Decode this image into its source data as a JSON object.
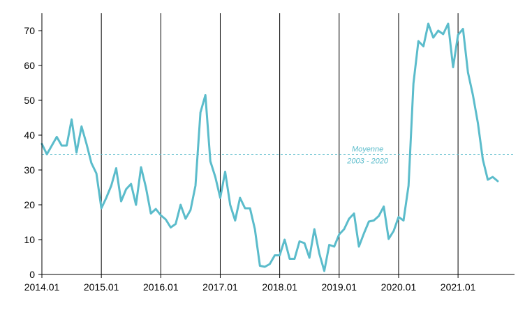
{
  "chart_data": {
    "type": "line",
    "title": "",
    "xlabel": "",
    "ylabel": "",
    "ylim": [
      0,
      75
    ],
    "yticks": [
      0,
      10,
      20,
      30,
      40,
      50,
      60,
      70
    ],
    "xlim": [
      2014.0,
      2021.95
    ],
    "x_ticks": [
      {
        "x": 2014.0,
        "label": "2014.01"
      },
      {
        "x": 2015.0,
        "label": "2015.01"
      },
      {
        "x": 2016.0,
        "label": "2016.01"
      },
      {
        "x": 2017.0,
        "label": "2017.01"
      },
      {
        "x": 2018.0,
        "label": "2018.01"
      },
      {
        "x": 2019.0,
        "label": "2019.01"
      },
      {
        "x": 2020.0,
        "label": "2020.01"
      },
      {
        "x": 2021.0,
        "label": "2021.01"
      }
    ],
    "vertical_lines": [
      2015.0,
      2016.0,
      2017.0,
      2018.0,
      2019.0,
      2020.0,
      2021.0
    ],
    "grid": false,
    "legend": "none",
    "series_color": "#5bbccb",
    "average": {
      "value": 34.5,
      "label_line1": "Moyenne",
      "label_line2": "2003 - 2020",
      "color": "#5bbccb"
    },
    "series": [
      {
        "x": [
          2014.0,
          2014.083,
          2014.167,
          2014.25,
          2014.333,
          2014.417,
          2014.5,
          2014.583,
          2014.667,
          2014.75,
          2014.833,
          2014.917,
          2015.0,
          2015.083,
          2015.167,
          2015.25,
          2015.333,
          2015.417,
          2015.5,
          2015.583,
          2015.667,
          2015.75,
          2015.833,
          2015.917,
          2016.0,
          2016.083,
          2016.167,
          2016.25,
          2016.333,
          2016.417,
          2016.5,
          2016.583,
          2016.667,
          2016.75,
          2016.833,
          2016.917,
          2017.0,
          2017.083,
          2017.167,
          2017.25,
          2017.333,
          2017.417,
          2017.5,
          2017.583,
          2017.667,
          2017.75,
          2017.833,
          2017.917,
          2018.0,
          2018.083,
          2018.167,
          2018.25,
          2018.333,
          2018.417,
          2018.5,
          2018.583,
          2018.667,
          2018.75,
          2018.833,
          2018.917,
          2019.0,
          2019.083,
          2019.167,
          2019.25,
          2019.333,
          2019.417,
          2019.5,
          2019.583,
          2019.667,
          2019.75,
          2019.833,
          2019.917,
          2020.0,
          2020.083,
          2020.167,
          2020.25,
          2020.333,
          2020.417,
          2020.5,
          2020.583,
          2020.667,
          2020.75,
          2020.833,
          2020.917,
          2021.0,
          2021.083,
          2021.167,
          2021.25,
          2021.333,
          2021.417,
          2021.5,
          2021.583,
          2021.667,
          2021.75
        ],
        "values": [
          37.5,
          34.5,
          37.0,
          39.5,
          37.0,
          37.0,
          44.5,
          35.0,
          42.5,
          37.5,
          32.0,
          29.0,
          19.0,
          22.0,
          25.5,
          30.5,
          21.0,
          24.5,
          26.0,
          20.0,
          30.8,
          25.0,
          17.5,
          18.8,
          17.0,
          15.8,
          13.5,
          14.5,
          20.0,
          16.0,
          18.5,
          25.5,
          46.5,
          51.5,
          32.5,
          28.0,
          22.0,
          29.5,
          20.0,
          15.5,
          22.0,
          19.0,
          19.0,
          13.0,
          2.5,
          2.2,
          3.0,
          5.5,
          5.5,
          10.0,
          4.5,
          4.5,
          9.5,
          9.0,
          4.8,
          13.0,
          6.0,
          1.0,
          8.5,
          8.0,
          11.5,
          13.0,
          16.0,
          17.5,
          8.0,
          11.8,
          15.2,
          15.5,
          16.8,
          19.5,
          10.2,
          12.5,
          16.5,
          15.5,
          25.5,
          54.8,
          67.0,
          65.5,
          72.0,
          68.0,
          70.0,
          69.0,
          72.0,
          59.5,
          68.8,
          70.5,
          58.0,
          51.5,
          43.5,
          33.0,
          27.2,
          28.0,
          26.8,
          null
        ]
      }
    ]
  }
}
